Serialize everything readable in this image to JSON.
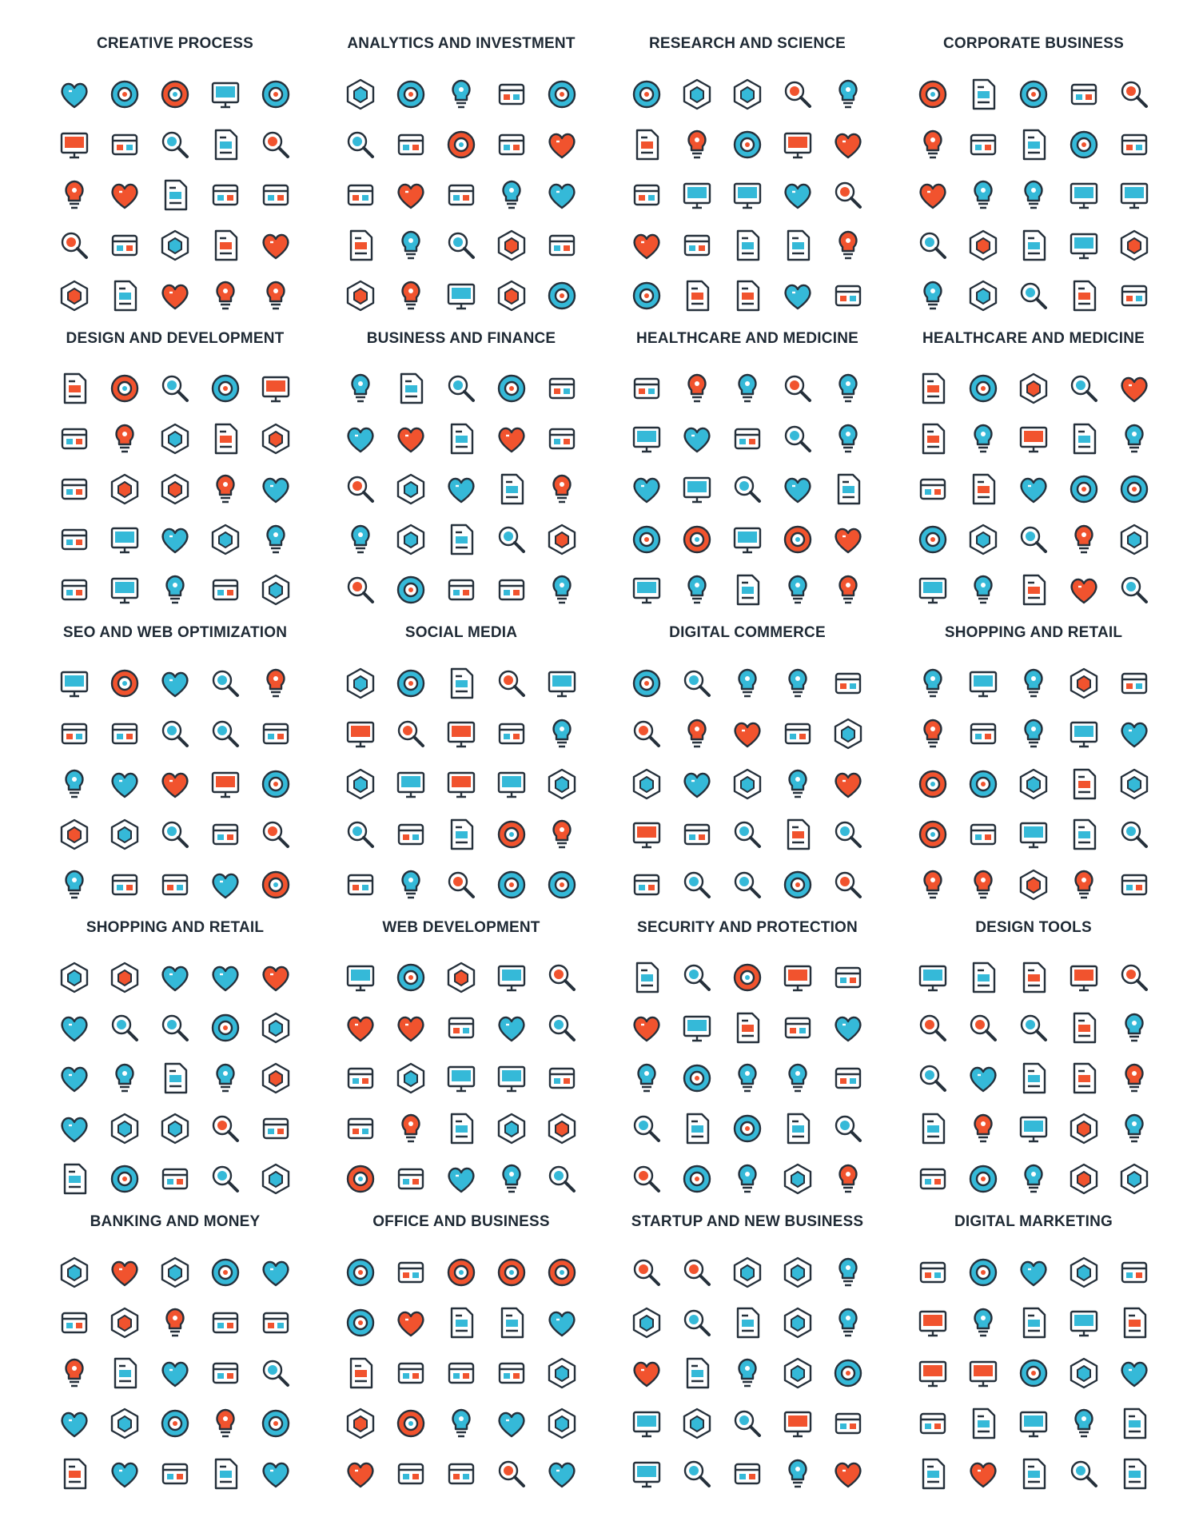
{
  "colors": {
    "stroke": "#25303b",
    "accent_blue": "#35b9d8",
    "accent_orange": "#f1532e",
    "title": "#1f2a35",
    "background": "#ffffff"
  },
  "sections": [
    {
      "title": "CREATIVE PROCESS",
      "icons": [
        "heart-pen-icon",
        "head-idea-icon",
        "lightbulb-icon",
        "eye-icon",
        "document-pen-icon",
        "pencil-ruler-cross-icon",
        "drafting-table-icon",
        "books-icon",
        "notebook-icon",
        "pyramid-icon",
        "brain-bulb-icon",
        "laptop-icon",
        "tablet-icon",
        "picture-frame-icon",
        "clapperboard-icon",
        "letter-a-compass-icon",
        "web-browser-icon",
        "keyboard-tablet-icon",
        "coffee-mug-icon",
        "puzzle-icon",
        "pen-tool-icon",
        "flowchart-icon",
        "layers-icon",
        "gears-slider-icon",
        "clamp-icon"
      ]
    },
    {
      "title": "ANALYTICS AND INVESTMENT",
      "icons": [
        "pie-dollar-icon",
        "hand-coin-icon",
        "money-plant-icon",
        "flask-chart-icon",
        "stopwatch-dollar-icon",
        "chess-piece-icon",
        "eye-icon",
        "money-bag-icon",
        "laptop-chart-icon",
        "microscope-percent-icon",
        "presentation-icon",
        "magnifier-network-icon",
        "bulb-dollar-icon",
        "shield-dollar-icon",
        "money-exchange-icon",
        "calculator-icon",
        "scales-icon",
        "growth-chart-icon",
        "business-person-icon",
        "head-gears-icon",
        "newspaper-icon",
        "documents-glasses-icon",
        "tablet-chart-icon",
        "hourglass-icon",
        "globe-dollar-icon"
      ]
    },
    {
      "title": "RESEARCH AND SCIENCE",
      "icons": [
        "flask-plant-icon",
        "atom-icon",
        "microscope-icon",
        "goggles-icon",
        "laser-icon",
        "molecule-icon",
        "dna-icon",
        "biohazard-icon",
        "brain-idea-icon",
        "lightbulb-icon",
        "radiation-icon",
        "planet-icon",
        "virus-icon",
        "test-tubes-icon",
        "chip-icon",
        "magnifier-idea-icon",
        "gear-idea-icon",
        "petri-dish-icon",
        "magnet-icon",
        "globe-icon",
        "molecule-network-icon",
        "blackboard-formula-icon",
        "newton-cradle-icon",
        "book-icon",
        "checklist-icon"
      ]
    },
    {
      "title": "CORPORATE BUSINESS",
      "icons": [
        "building-growth-icon",
        "calendar-check-icon",
        "globe-rocket-icon",
        "magnifier-person-icon",
        "employee-icon",
        "presentation-board-icon",
        "org-chart-icon",
        "team-icon",
        "mountain-flag-icon",
        "office-chair-icon",
        "skyscrapers-icon",
        "compass-gauge-icon",
        "necktie-icon",
        "headset-chat-icon",
        "businessman-idea-icon",
        "meeting-board-icon",
        "desk-presentation-icon",
        "hands-plant-icon",
        "balance-person-icon",
        "network-blocks-icon",
        "document-chart-icon",
        "calculator-icon",
        "chess-king-icon",
        "id-badge-icon",
        "reception-desk-icon"
      ]
    },
    {
      "title": "DESIGN AND DEVELOPMENT",
      "icons": [
        "color-circles-icon",
        "easel-icon",
        "gear-icon",
        "layout-document-icon",
        "ruler-pencil-icon",
        "mobile-design-icon",
        "toolbox-icon",
        "bulb-touch-icon",
        "film-strip-icon",
        "idea-bulb-icon",
        "monitor-design-icon",
        "compass-icon",
        "browser-window-icon",
        "at-sign-icon",
        "cube-icon",
        "desk-lamp-icon",
        "devices-icon",
        "hand-click-icon",
        "flask-icon",
        "crop-tool-icon",
        "document-chart-icon",
        "eye-icon",
        "graphic-tablet-icon",
        "target-icon",
        "code-window-icon"
      ]
    },
    {
      "title": "BUSINESS AND FINANCE",
      "icons": [
        "hourglass-icon",
        "laptop-money-icon",
        "presentation-icon",
        "newspaper-icon",
        "pie-chart-icon",
        "calculator-icon",
        "document-icon",
        "handshake-icon",
        "scales-icon",
        "fast-coin-icon",
        "idea-icon",
        "org-chart-icon",
        "flask-dollar-icon",
        "briefcase-icon",
        "target-icon",
        "diamond-icon",
        "clipboard-icon",
        "money-icon",
        "location-route-icon",
        "target-arrow-icon",
        "clock-icon",
        "phone-chat-icon",
        "key-icon",
        "team-network-icon",
        "trophy-icon"
      ]
    },
    {
      "title": "HEALTHCARE AND MEDICINE",
      "icons": [
        "tooth-icon",
        "first-aid-kit-icon",
        "eye-icon",
        "brain-icon",
        "flask-icon",
        "pill-icon",
        "iv-bag-icon",
        "medicine-bottle-icon",
        "stethoscope-icon",
        "location-cross-icon",
        "test-tube-icon",
        "phone-emergency-icon",
        "bandage-icon",
        "thermometer-icon",
        "heartbeat-icon",
        "syringe-icon",
        "hospital-icon",
        "monitor-pulse-icon",
        "ribbon-icon",
        "microscope-icon",
        "medical-clipboard-icon",
        "ambulance-icon",
        "caduceus-icon",
        "apple-icon",
        "dna-icon"
      ]
    },
    {
      "title": "HEALTHCARE AND MEDICINE",
      "icons": [
        "cannabis-leaf-icon",
        "pill-pack-icon",
        "head-cross-icon",
        "gender-icon",
        "heart-monitor-icon",
        "petri-dish-icon",
        "hospital-bed-icon",
        "thermometer-icon",
        "medicine-jar-icon",
        "capsule-icon",
        "dental-implant-icon",
        "joint-icon",
        "glasses-icon",
        "blood-drop-icon",
        "star-of-life-icon",
        "wheelchair-icon",
        "dropper-icon",
        "pill-bottle-icon",
        "x-ray-icon",
        "test-tube-icon",
        "helicopter-icon",
        "nurse-icon",
        "blood-pressure-icon",
        "telephone-icon",
        "toothbrush-icon"
      ]
    },
    {
      "title": "SEO AND WEB OPTIMIZATION",
      "icons": [
        "gear-chart-icon",
        "magnifier-gauge-icon",
        "laptop-location-icon",
        "target-cursor-icon",
        "stopwatch-target-icon",
        "monitor-chart-icon",
        "chat-bubbles-icon",
        "link-icon",
        "document-gear-icon",
        "share-icon",
        "document-list-icon",
        "folder-home-icon",
        "eye-icon",
        "growth-bars-icon",
        "traffic-light-icon",
        "seo-tag-icon",
        "web-layout-icon",
        "award-badge-icon",
        "bulb-gear-icon",
        "video-player-icon",
        "tools-icon",
        "document-scroll-icon",
        "browser-shield-icon",
        "chat-window-icon",
        "anchor-icon"
      ]
    },
    {
      "title": "SOCIAL MEDIA",
      "icons": [
        "cloud-sync-icon",
        "thumbs-up-icon",
        "link-icon",
        "globe-icon",
        "location-pin-icon",
        "heart-icon",
        "picture-icon",
        "star-icon",
        "share-icon",
        "chat-smile-icon",
        "email-icon",
        "paper-plane-icon",
        "chat-icon",
        "user-add-icon",
        "users-icon",
        "megaphone-icon",
        "music-note-icon",
        "tag-icon",
        "video-icon",
        "document-edit-icon",
        "camera-icon",
        "phone-chat-icon",
        "rss-icon",
        "bird-icon",
        "address-book-icon"
      ]
    },
    {
      "title": "DIGITAL COMMERCE",
      "icons": [
        "money-cards-icon",
        "monitor-card-icon",
        "mobile-percent-icon",
        "shopping-bag-icon",
        "globe-box-icon",
        "store-percent-icon",
        "cart-globe-icon",
        "globe-dollar-icon",
        "clock-24-icon",
        "card-lock-icon",
        "barcode-scan-icon",
        "buy-button-icon",
        "online-shop-icon",
        "storefront-icon",
        "basket-icon",
        "qr-code-icon",
        "laptop-growth-icon",
        "receipt-icon",
        "chip-dollar-icon",
        "calculator-icon",
        "web-search-icon",
        "mobile-card-icon",
        "atm-icon",
        "mobile-payment-icon",
        "plane-icon"
      ]
    },
    {
      "title": "SHOPPING AND RETAIL",
      "icons": [
        "cash-register-icon",
        "thumbs-up-icon",
        "shopping-bag-icon",
        "save-badge-icon",
        "heart-icon",
        "bag-percent-icon",
        "coins-icon",
        "receipt-icon",
        "coupon-icon",
        "wallet-icon",
        "basket-icon",
        "coin-euro-icon",
        "store-sign-icon",
        "box-icon",
        "hand-touch-icon",
        "chat-star-icon",
        "gift-receipt-icon",
        "cart-icon",
        "credit-card-icon",
        "piggy-bank-icon",
        "mobile-shop-icon",
        "sale-tag-icon",
        "bottle-icon",
        "megaphone-icon",
        "receipt-pen-icon"
      ]
    },
    {
      "title": "SHOPPING AND RETAIL",
      "icons": [
        "fast-delivery-icon",
        "barcode-icon",
        "discount-badge-icon",
        "credit-card-icon",
        "shopping-bag-icon",
        "new-badge-icon",
        "gift-icon",
        "shopping-cart-icon",
        "basket-icon",
        "mobile-percent-icon",
        "closed-sign-icon",
        "open-sign-icon",
        "sale-sign-icon",
        "atm-icon",
        "coin-cursor-icon",
        "stopwatch-icon",
        "coupon-icon",
        "location-percent-icon",
        "store-icon",
        "hand-truck-icon",
        "receipt-icon",
        "groceries-icon",
        "cash-register-icon",
        "gift-card-icon",
        "wallet-icon"
      ]
    },
    {
      "title": "WEB DEVELOPMENT",
      "icons": [
        "image-window-icon",
        "browser-shield-icon",
        "document-layout-icon",
        "bar-chart-board-icon",
        "devices-icon",
        "laptop-layout-icon",
        "home-window-icon",
        "form-window-icon",
        "www-search-icon",
        "sitemap-board-icon",
        "code-document-icon",
        "hard-drive-icon",
        "404-error-icon",
        "ab-test-icon",
        "laptop-cursor-icon",
        "speed-window-icon",
        "touch-network-icon",
        "book-icon",
        "network-window-icon",
        "domain-icon",
        "sitemap-icon",
        "api-window-icon",
        "bug-gear-icon",
        "team-laptop-icon",
        "calendar-window-icon"
      ]
    },
    {
      "title": "SECURITY AND PROTECTION",
      "icons": [
        "fingerprint-icon",
        "cloud-lock-icon",
        "prohibited-icon",
        "shield-check-icon",
        "lifebuoy-icon",
        "padlock-icon",
        "unlocked-icon",
        "eye-scan-icon",
        "sheriff-badge-icon",
        "keypad-icon",
        "alarm-icon",
        "crosshair-icon",
        "monitor-warning-icon",
        "crossed-keys-icon",
        "firewall-icon",
        "umbrella-icon",
        "traffic-cone-icon",
        "spy-icon",
        "safe-icon",
        "cctv-icon",
        "bug-icon",
        "no-virus-icon",
        "bomb-icon",
        "id-card-icon",
        "mobile-shield-icon"
      ]
    },
    {
      "title": "DESIGN TOOLS",
      "icons": [
        "layers-icon",
        "text-tool-icon",
        "pen-nib-icon",
        "bezier-curve-icon",
        "selection-tool-icon",
        "anchor-point-icon",
        "pencil-icon",
        "crop-square-icon",
        "paint-brush-icon",
        "band-aid-icon",
        "spray-can-icon",
        "magnifier-icon",
        "ruler-icon",
        "eyedropper-icon",
        "magnet-icon",
        "cube-icon",
        "magic-wand-icon",
        "scalpel-icon",
        "paint-roller-icon",
        "cursor-select-icon",
        "eraser-icon",
        "marker-icon",
        "crop-tool-icon",
        "palette-icon",
        "shapes-icon"
      ]
    },
    {
      "title": "BANKING AND MONEY",
      "icons": [
        "euro-coin-icon",
        "dollar-coin-icon",
        "currency-exchange-icon",
        "safe-icon",
        "percent-icon",
        "location-pins-icon",
        "gold-bars-icon",
        "money-bag-icon",
        "wallet-icon",
        "credit-card-icon",
        "mobile-dollar-icon",
        "percent-chart-icon",
        "bank-icon",
        "magnifier-dollar-icon",
        "bank-check-icon",
        "umbrella-money-icon",
        "banknote-icon",
        "hand-coins-icon",
        "envelope-money-icon",
        "calculator-icon",
        "atm-icon",
        "document-chart-icon",
        "monitor-chart-icon",
        "mobile-payment-icon",
        "piggy-bank-icon"
      ]
    },
    {
      "title": "OFFICE AND BUSINESS",
      "icons": [
        "cactus-icon",
        "lightbulb-icon",
        "document-frame-icon",
        "filing-cabinet-icon",
        "computer-mouse-icon",
        "briefcase-icon",
        "clock-icon",
        "push-pin-icon",
        "presentation-board-icon",
        "mail-icon",
        "printer-icon",
        "calendar-icon",
        "notebook-icon",
        "desk-lamp-icon",
        "shirt-tie-icon",
        "office-chair-icon",
        "telephone-icon",
        "binders-icon",
        "folder-search-icon",
        "pencils-icon",
        "laptop-desk-icon",
        "id-badge-icon",
        "office-buildings-icon",
        "coffee-icon",
        "folder-icon"
      ]
    },
    {
      "title": "STARTUP AND NEW BUSINESS",
      "icons": [
        "money-plant-icon",
        "idea-bulb-icon",
        "network-dollar-icon",
        "binoculars-icon",
        "head-gear-icon",
        "rocket-icon",
        "megaphone-icon",
        "flask-globe-icon",
        "eye-target-icon",
        "hand-growth-icon",
        "box-arrows-icon",
        "move-arrows-icon",
        "trophy-network-icon",
        "mobile-dollar-icon",
        "signpost-icon",
        "monitor-chart-icon",
        "ipo-sign-icon",
        "laptop-gear-icon",
        "document-dollar-icon",
        "target-arrow-icon",
        "tools-icon",
        "clipboard-chart-icon",
        "pie-dollar-icon",
        "blueprint-icon",
        "mountain-growth-icon"
      ]
    },
    {
      "title": "DIGITAL MARKETING",
      "icons": [
        "laptop-mail-icon",
        "ad-board-icon",
        "location-dollar-icon",
        "document-a-icon",
        "thumbs-up-chat-icon",
        "layout-grid-icon",
        "idea-bulb-icon",
        "open-sign-icon",
        "video-window-icon",
        "eye-dollar-icon",
        "location-target-icon",
        "funnel-icon",
        "megaphone-icon",
        "network-person-icon",
        "document-scroll-icon",
        "cloud-network-icon",
        "growth-graph-icon",
        "laptop-growth-icon",
        "chat-keyboard-icon",
        "list-items-icon",
        "gear-person-icon",
        "mail-newsletter-icon",
        "document-key-icon",
        "mobile-globe-icon",
        "newspaper-icon"
      ]
    }
  ]
}
